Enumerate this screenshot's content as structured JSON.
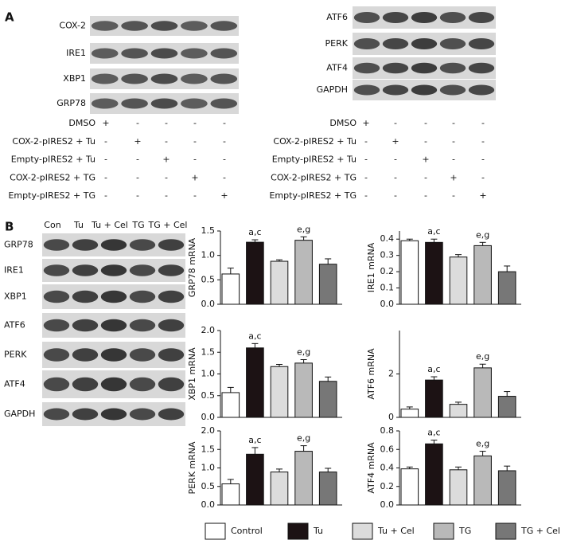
{
  "panel_a": {
    "label": "A",
    "blot_left": [
      "COX-2",
      "IRE1",
      "XBP1",
      "GRP78"
    ],
    "blot_right": [
      "ATF6",
      "PERK",
      "ATF4",
      "GAPDH"
    ],
    "treatments": [
      "DMSO",
      "COX-2-pIRES2 + Tu",
      "Empty-pIRES2 + Tu",
      "COX-2-pIRES2 + TG",
      "Empty-pIRES2 + TG"
    ],
    "signs": [
      [
        "+",
        "-",
        "-",
        "-",
        "-"
      ],
      [
        "-",
        "+",
        "-",
        "-",
        "-"
      ],
      [
        "-",
        "-",
        "+",
        "-",
        "-"
      ],
      [
        "-",
        "-",
        "-",
        "+",
        "-"
      ],
      [
        "-",
        "-",
        "-",
        "-",
        "+"
      ]
    ]
  },
  "panel_b": {
    "label": "B",
    "lanes": [
      "Con",
      "Tu",
      "Tu + Cel",
      "TG",
      "TG + Cel"
    ],
    "blots": [
      "GRP78",
      "IRE1",
      "XBP1",
      "ATF6",
      "PERK",
      "ATF4",
      "GAPDH"
    ]
  },
  "legend": {
    "names": [
      "Control",
      "Tu",
      "Tu + Cel",
      "TG",
      "TG + Cel"
    ],
    "colors": [
      "#ffffff",
      "#1c1214",
      "#dcdcdc",
      "#b9b9b9",
      "#777777"
    ]
  },
  "chart_data": [
    {
      "type": "bar",
      "ylabel": "GRP78 mRNA",
      "values": [
        0.62,
        1.27,
        0.88,
        1.31,
        0.82
      ],
      "errors": [
        0.12,
        0.05,
        0.03,
        0.07,
        0.11
      ],
      "ylim": [
        0,
        1.5
      ],
      "yticks": [
        {
          "value": 0,
          "label": "0.0"
        },
        0.5,
        {
          "value": 1,
          "label": "1.0"
        },
        1.5
      ],
      "annotations": [
        {
          "text": "a,c",
          "index": 1
        },
        {
          "text": "e,g",
          "index": 3
        }
      ]
    },
    {
      "type": "bar",
      "ylabel": "IRE1 mRNA",
      "values": [
        0.39,
        0.38,
        0.29,
        0.36,
        0.2
      ],
      "errors": [
        0.01,
        0.02,
        0.015,
        0.02,
        0.035
      ],
      "ylim": [
        0,
        0.45
      ],
      "yticks": [
        {
          "value": 0,
          "label": "0.0"
        },
        0.1,
        0.2,
        0.3,
        0.4
      ],
      "annotations": [
        {
          "text": "a,c",
          "index": 1
        },
        {
          "text": "e,g",
          "index": 3
        }
      ]
    },
    {
      "type": "bar",
      "ylabel": "XBP1 mRNA",
      "values": [
        0.57,
        1.6,
        1.17,
        1.25,
        0.83
      ],
      "errors": [
        0.12,
        0.1,
        0.05,
        0.08,
        0.1
      ],
      "ylim": [
        0,
        2
      ],
      "yticks": [
        {
          "value": 0,
          "label": "0.0"
        },
        0.5,
        {
          "value": 1,
          "label": "1.0"
        },
        1.5,
        {
          "value": 2,
          "label": "2.0"
        }
      ],
      "annotations": [
        {
          "text": "a,c",
          "index": 1
        },
        {
          "text": "e,g",
          "index": 3
        }
      ]
    },
    {
      "type": "bar",
      "ylabel": "ATF6 mRNA",
      "values": [
        0.38,
        1.72,
        0.6,
        2.28,
        0.97
      ],
      "errors": [
        0.1,
        0.15,
        0.1,
        0.17,
        0.22
      ],
      "ylim": [
        0,
        4
      ],
      "yticks": [
        0,
        2
      ],
      "annotations": [
        {
          "text": "a,c",
          "index": 1
        },
        {
          "text": "e,g",
          "index": 3
        }
      ]
    },
    {
      "type": "bar",
      "ylabel": "PERK mRNA",
      "values": [
        0.57,
        1.37,
        0.89,
        1.45,
        0.89
      ],
      "errors": [
        0.12,
        0.18,
        0.08,
        0.15,
        0.1
      ],
      "ylim": [
        0,
        2
      ],
      "yticks": [
        {
          "value": 0,
          "label": "0.0"
        },
        0.5,
        {
          "value": 1,
          "label": "1.0"
        },
        1.5,
        {
          "value": 2,
          "label": "2.0"
        }
      ],
      "annotations": [
        {
          "text": "a,c",
          "index": 1
        },
        {
          "text": "e,g",
          "index": 3
        }
      ]
    },
    {
      "type": "bar",
      "ylabel": "ATF4 mRNA",
      "values": [
        0.39,
        0.66,
        0.38,
        0.53,
        0.37
      ],
      "errors": [
        0.02,
        0.04,
        0.03,
        0.05,
        0.05
      ],
      "ylim": [
        0,
        0.8
      ],
      "yticks": [
        {
          "value": 0,
          "label": "0.0"
        },
        0.2,
        0.4,
        0.6,
        0.8
      ],
      "annotations": [
        {
          "text": "a,c",
          "index": 1
        },
        {
          "text": "e,g",
          "index": 3
        }
      ]
    }
  ]
}
